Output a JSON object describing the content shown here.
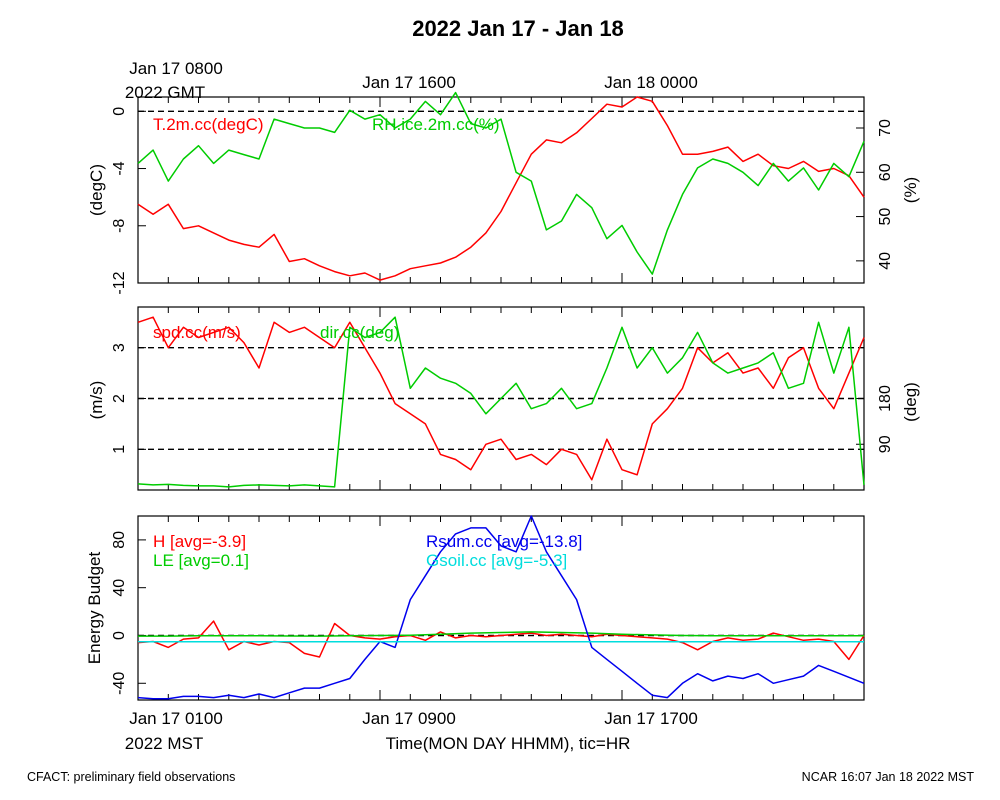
{
  "title": "2022 Jan 17 - Jan 18",
  "top_axis": {
    "labels": [
      {
        "line1": "Jan 17 0800",
        "line2": "2022 GMT"
      },
      {
        "line1": "Jan 17 1600",
        "line2": ""
      },
      {
        "line1": "Jan 18 0000",
        "line2": ""
      }
    ]
  },
  "bottom_axis": {
    "labels": [
      {
        "line1": "Jan 17 0100",
        "line2": "2022 MST"
      },
      {
        "line1": "Jan 17 0900",
        "line2": ""
      },
      {
        "line1": "Jan 17 1700",
        "line2": ""
      }
    ],
    "xlabel": "Time(MON DAY HHMM), tic=HR"
  },
  "footer": {
    "left": "CFACT: preliminary field observations",
    "right": "NCAR 16:07 Jan 18 2022 MST"
  },
  "colors": {
    "red": "#ff0000",
    "green": "#00cc00",
    "blue": "#0000ee",
    "cyan": "#00dddd"
  },
  "chart_data": [
    {
      "type": "line",
      "panel": "temperature-rh",
      "xlim": [
        1,
        25
      ],
      "ylabel": "(degC)",
      "ylim": [
        -12,
        1
      ],
      "yticks": [
        0,
        -4,
        -8,
        -12
      ],
      "y2label": "(%)",
      "y2lim": [
        35,
        77
      ],
      "y2ticks": [
        70,
        60,
        50,
        40
      ],
      "reference_lines": [
        0
      ],
      "series": [
        {
          "name": "T.2m.cc(degC)",
          "axis": "left",
          "color": "red",
          "x": [
            1,
            1.5,
            2,
            2.5,
            3,
            3.5,
            4,
            4.5,
            5,
            5.5,
            6,
            6.5,
            7,
            7.5,
            8,
            8.5,
            9,
            9.5,
            10,
            10.5,
            11,
            11.5,
            12,
            12.5,
            13,
            13.5,
            14,
            14.5,
            15,
            15.5,
            16,
            16.5,
            17,
            17.5,
            18,
            18.5,
            19,
            19.5,
            20,
            20.5,
            21,
            21.5,
            22,
            22.5,
            23,
            23.5,
            24,
            24.5,
            25
          ],
          "y": [
            -6.5,
            -7.2,
            -6.5,
            -8.2,
            -8,
            -8.5,
            -9,
            -9.3,
            -9.5,
            -8.6,
            -10.5,
            -10.3,
            -10.8,
            -11.2,
            -11.5,
            -11.3,
            -11.8,
            -11.5,
            -11,
            -10.8,
            -10.6,
            -10.2,
            -9.5,
            -8.5,
            -7,
            -5,
            -3,
            -2,
            -2.2,
            -1.5,
            -0.5,
            0.5,
            0.3,
            1,
            0.7,
            -1,
            -3,
            -3,
            -2.8,
            -2.5,
            -3.5,
            -3,
            -3.8,
            -4,
            -3.5,
            -4.2,
            -4,
            -4.5,
            -6
          ]
        },
        {
          "name": "RH.ice.2m.cc(%)",
          "axis": "right",
          "color": "green",
          "x": [
            1,
            1.5,
            2,
            2.5,
            3,
            3.5,
            4,
            4.5,
            5,
            5.5,
            6,
            6.5,
            7,
            7.5,
            8,
            8.5,
            9,
            9.5,
            10,
            10.5,
            11,
            11.5,
            12,
            12.5,
            13,
            13.5,
            14,
            14.5,
            15,
            15.5,
            16,
            16.5,
            17,
            17.5,
            18,
            18.5,
            19,
            19.5,
            20,
            20.5,
            21,
            21.5,
            22,
            22.5,
            23,
            23.5,
            24,
            24.5,
            25
          ],
          "y": [
            62,
            65,
            58,
            63,
            66,
            62,
            65,
            64,
            63,
            72,
            71,
            70,
            70,
            69,
            74,
            72,
            73,
            70,
            72,
            76,
            73,
            78,
            71,
            70,
            72,
            60,
            58,
            47,
            49,
            55,
            52,
            45,
            48,
            42,
            37,
            47,
            55,
            61,
            63,
            62,
            60,
            57,
            62,
            58,
            61,
            56,
            62,
            59,
            67
          ]
        }
      ]
    },
    {
      "type": "line",
      "panel": "wind",
      "xlim": [
        1,
        25
      ],
      "ylabel": "(m/s)",
      "ylim": [
        0.2,
        3.8
      ],
      "yticks": [
        1,
        2,
        3
      ],
      "y2label": "(deg)",
      "y2lim": [
        0,
        360
      ],
      "y2ticks": [
        180,
        90
      ],
      "reference_lines": [
        1,
        2,
        3
      ],
      "series": [
        {
          "name": "spd.cc(m/s)",
          "axis": "left",
          "color": "red",
          "x": [
            1,
            1.5,
            2,
            2.5,
            3,
            3.5,
            4,
            4.5,
            5,
            5.5,
            6,
            6.5,
            7,
            7.5,
            8,
            8.5,
            9,
            9.5,
            10,
            10.5,
            11,
            11.5,
            12,
            12.5,
            13,
            13.5,
            14,
            14.5,
            15,
            15.5,
            16,
            16.5,
            17,
            17.5,
            18,
            18.5,
            19,
            19.5,
            20,
            20.5,
            21,
            21.5,
            22,
            22.5,
            23,
            23.5,
            24,
            24.5,
            25
          ],
          "y": [
            3.5,
            3.6,
            3,
            3.4,
            3.2,
            3.3,
            3.4,
            3.1,
            2.6,
            3.5,
            3.3,
            3.4,
            3.2,
            3,
            3.5,
            3,
            2.5,
            1.9,
            1.7,
            1.5,
            0.9,
            0.8,
            0.6,
            1.1,
            1.2,
            0.8,
            0.9,
            0.7,
            1,
            0.9,
            0.4,
            1.2,
            0.6,
            0.5,
            1.5,
            1.8,
            2.2,
            3,
            2.7,
            2.9,
            2.5,
            2.6,
            2.2,
            2.8,
            3,
            2.2,
            1.8,
            2.5,
            3.2
          ]
        },
        {
          "name": "dir.cc(deg)",
          "axis": "right",
          "color": "green",
          "x": [
            1,
            1.5,
            2,
            2.5,
            3,
            3.5,
            4,
            4.5,
            5,
            5.5,
            6,
            6.5,
            7,
            7.5,
            8,
            8.5,
            9,
            9.5,
            10,
            10.5,
            11,
            11.5,
            12,
            12.5,
            13,
            13.5,
            14,
            14.5,
            15,
            15.5,
            16,
            16.5,
            17,
            17.5,
            18,
            18.5,
            19,
            19.5,
            20,
            20.5,
            21,
            21.5,
            22,
            22.5,
            23,
            23.5,
            24,
            24.5,
            25
          ],
          "y": [
            12,
            10,
            11,
            9,
            8,
            8,
            6,
            9,
            10,
            9,
            8,
            10,
            8,
            6,
            320,
            300,
            310,
            340,
            200,
            240,
            220,
            210,
            190,
            150,
            180,
            210,
            160,
            170,
            200,
            160,
            170,
            240,
            320,
            240,
            280,
            230,
            260,
            310,
            250,
            230,
            240,
            250,
            270,
            200,
            210,
            330,
            230,
            320,
            10
          ]
        }
      ]
    },
    {
      "type": "line",
      "panel": "energy-budget",
      "xlim": [
        1,
        25
      ],
      "ylabel": "Energy Budget",
      "ylim": [
        -54,
        100
      ],
      "yticks": [
        80,
        40,
        0,
        -40
      ],
      "reference_lines": [
        0
      ],
      "series": [
        {
          "name": "H [avg=-3.9]",
          "color": "red",
          "x": [
            1,
            1.5,
            2,
            2.5,
            3,
            3.5,
            4,
            4.5,
            5,
            5.5,
            6,
            6.5,
            7,
            7.5,
            8,
            8.5,
            9,
            9.5,
            10,
            10.5,
            11,
            11.5,
            12,
            12.5,
            13,
            13.5,
            14,
            14.5,
            15,
            15.5,
            16,
            16.5,
            17,
            17.5,
            18,
            18.5,
            19,
            19.5,
            20,
            20.5,
            21,
            21.5,
            22,
            22.5,
            23,
            23.5,
            24,
            24.5,
            25
          ],
          "y": [
            -6,
            -5,
            -10,
            -3,
            -2,
            12,
            -12,
            -5,
            -8,
            -5,
            -6,
            -15,
            -18,
            10,
            0,
            -2,
            -3,
            -1,
            0,
            -4,
            3,
            -2,
            0,
            -1,
            0,
            1,
            2,
            0,
            1,
            0,
            -1,
            1,
            0,
            -1,
            -2,
            -3,
            -6,
            -12,
            -5,
            -2,
            -4,
            -3,
            2,
            -1,
            -4,
            -3,
            -5,
            -20,
            0
          ]
        },
        {
          "name": "LE [avg=0.1]",
          "color": "green",
          "x": [
            1,
            2,
            3,
            4,
            5,
            6,
            7,
            8,
            9,
            10,
            11,
            12,
            13,
            14,
            15,
            16,
            17,
            18,
            19,
            20,
            21,
            22,
            23,
            24,
            25
          ],
          "y": [
            -0.5,
            -0.5,
            -0.3,
            -0.2,
            -0.3,
            -0.4,
            -0.5,
            -0.2,
            0,
            0.2,
            1,
            2,
            2.5,
            3,
            2.5,
            2,
            1,
            0.5,
            0,
            -0.2,
            -0.3,
            -0.3,
            -0.2,
            -0.3,
            -0.2
          ]
        },
        {
          "name": "Rsum.cc [avg=-13.8]",
          "color": "blue",
          "x": [
            1,
            1.5,
            2,
            2.5,
            3,
            3.5,
            4,
            4.5,
            5,
            5.5,
            6,
            6.5,
            7,
            7.5,
            8,
            8.5,
            9,
            9.5,
            10,
            10.5,
            11,
            11.5,
            12,
            12.5,
            13,
            13.5,
            14,
            14.5,
            15,
            15.5,
            16,
            16.5,
            17,
            17.5,
            18,
            18.5,
            19,
            19.5,
            20,
            20.5,
            21,
            21.5,
            22,
            22.5,
            23,
            23.5,
            24,
            24.5,
            25
          ],
          "y": [
            -52,
            -53,
            -53,
            -51,
            -51,
            -52,
            -50,
            -52,
            -49,
            -52,
            -48,
            -44,
            -44,
            -40,
            -36,
            -20,
            -5,
            -10,
            30,
            50,
            70,
            85,
            90,
            90,
            75,
            70,
            100,
            70,
            50,
            30,
            -10,
            -20,
            -30,
            -40,
            -50,
            -52,
            -40,
            -32,
            -38,
            -34,
            -36,
            -32,
            -40,
            -37,
            -34,
            -25,
            -30,
            -35,
            -40
          ]
        },
        {
          "name": "Gsoil.cc [avg=-5.3]",
          "color": "cyan",
          "x": [
            1,
            25
          ],
          "y": [
            -5.3,
            -5.3
          ]
        }
      ]
    }
  ]
}
